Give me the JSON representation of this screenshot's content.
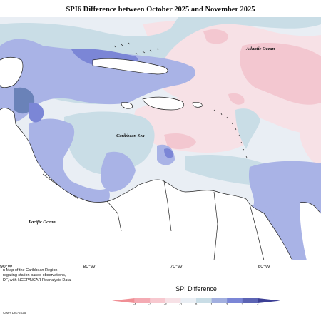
{
  "title": "SPI6 Difference between October 2025 and November 2025",
  "map": {
    "labels": {
      "atlantic": "Atlantic Ocean",
      "caribbean": "Caribbean Sea",
      "pacific": "Pacific Ocean"
    },
    "longitudes": [
      "90°W",
      "80°W",
      "70°W",
      "60°W"
    ],
    "colors": {
      "strong_dry": "#7b86d6",
      "dry": "#a9b3e6",
      "slight_dry": "#c9dde6",
      "neutral": "#e9eef4",
      "slight_wet": "#f7e1e6",
      "wet": "#f3c7d0",
      "darker_core": "#6a82b8",
      "land": "#ffffff",
      "coast": "#222222"
    }
  },
  "footnote": {
    "lines": [
      "n Map of the Caribbean Region",
      "regating station based observations,",
      "DF, with NCEP/NCAR Reanalysis Data."
    ],
    "credit": "CIMH Dec-2025"
  },
  "legend": {
    "title": "SPI Difference",
    "ticks": [
      "-4",
      "-3",
      "-2",
      "-1",
      "0",
      "1",
      "2",
      "3",
      "4"
    ],
    "segment_colors": [
      "#f08f95",
      "#f4aab3",
      "#f7c8cf",
      "#f7e1e6",
      "#e9eef4",
      "#c9dde6",
      "#a2afdf",
      "#7b86d6",
      "#5c64b4",
      "#3c3f95"
    ]
  }
}
